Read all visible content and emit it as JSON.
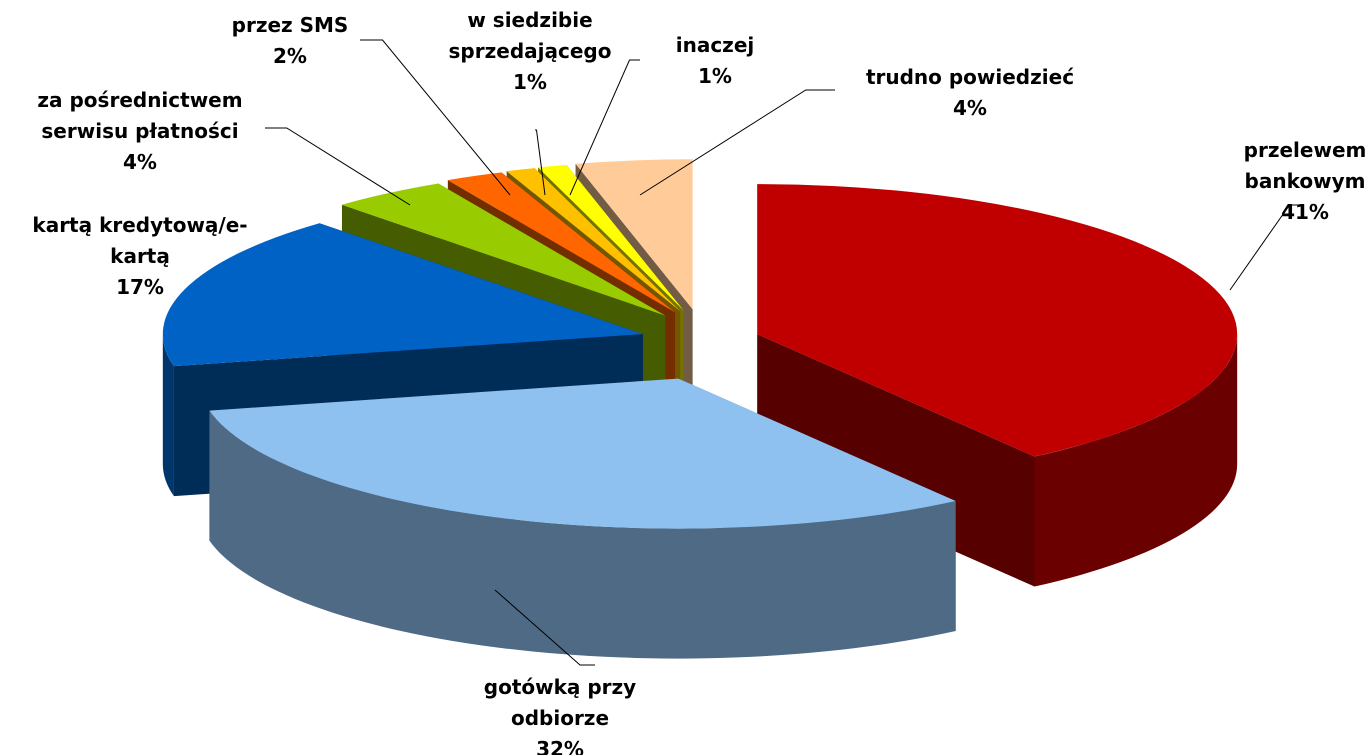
{
  "chart_data": {
    "type": "pie3d",
    "categories": [
      "przelewem bankowym",
      "gotówką przy odbiorze",
      "kartą kredytową/e-kartą",
      "za pośrednictwem serwisu płatności",
      "przez SMS",
      "w siedzibie sprzedającego",
      "inaczej",
      "trudno powiedzieć"
    ],
    "values": [
      41,
      32,
      17,
      4,
      2,
      1,
      1,
      4
    ],
    "value_labels": [
      "41%",
      "32%",
      "17%",
      "4%",
      "2%",
      "1%",
      "1%",
      "4%"
    ],
    "colors": [
      "#c00000",
      "#8ec0f0",
      "#0062c4",
      "#99cc00",
      "#ff6600",
      "#ffc000",
      "#ffff00",
      "#ffcc99"
    ]
  }
}
